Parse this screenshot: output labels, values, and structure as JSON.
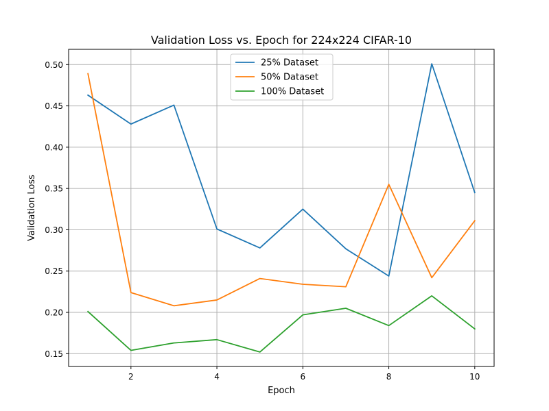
{
  "chart_data": {
    "type": "line",
    "title": "Validation Loss vs. Epoch for 224x224 CIFAR-10",
    "xlabel": "Epoch",
    "ylabel": "Validation Loss",
    "x": [
      1,
      2,
      3,
      4,
      5,
      6,
      7,
      8,
      9,
      10
    ],
    "xlim": [
      0.55,
      10.45
    ],
    "ylim": [
      0.1345,
      0.5185
    ],
    "x_ticks": [
      2,
      4,
      6,
      8,
      10
    ],
    "x_tick_labels": [
      "2",
      "4",
      "6",
      "8",
      "10"
    ],
    "y_ticks": [
      0.15,
      0.2,
      0.25,
      0.3,
      0.35,
      0.4,
      0.45,
      0.5
    ],
    "y_tick_labels": [
      "0.15",
      "0.20",
      "0.25",
      "0.30",
      "0.35",
      "0.40",
      "0.45",
      "0.50"
    ],
    "grid": true,
    "legend_position": "top-center",
    "series": [
      {
        "name": "25% Dataset",
        "color": "#1f77b4",
        "values": [
          0.463,
          0.428,
          0.451,
          0.301,
          0.278,
          0.325,
          0.277,
          0.244,
          0.501,
          0.345
        ]
      },
      {
        "name": "50% Dataset",
        "color": "#ff7f0e",
        "values": [
          0.489,
          0.224,
          0.208,
          0.215,
          0.241,
          0.234,
          0.231,
          0.355,
          0.242,
          0.311
        ]
      },
      {
        "name": "100% Dataset",
        "color": "#2ca02c",
        "values": [
          0.201,
          0.154,
          0.163,
          0.167,
          0.152,
          0.197,
          0.205,
          0.184,
          0.22,
          0.18
        ]
      }
    ]
  }
}
